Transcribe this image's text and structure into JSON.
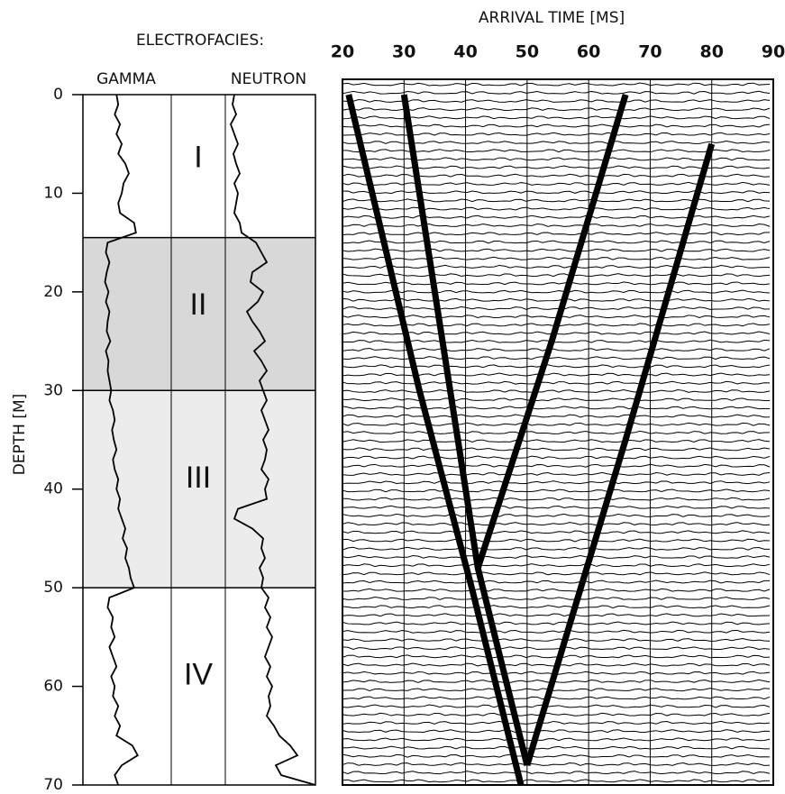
{
  "chart_data": [
    {
      "type": "well-log",
      "title": "ELECTROFACIES:",
      "ylabel": "DEPTH [M]",
      "ylim": [
        0,
        70
      ],
      "yticks": [
        0,
        10,
        20,
        30,
        40,
        50,
        60,
        70
      ],
      "xlim": [
        0,
        100
      ],
      "depth": [
        0,
        1,
        2,
        3,
        4,
        5,
        6,
        7,
        8,
        9,
        10,
        11,
        12,
        13,
        14,
        15,
        16,
        17,
        18,
        19,
        20,
        21,
        22,
        23,
        24,
        25,
        26,
        27,
        28,
        29,
        30,
        31,
        32,
        33,
        34,
        35,
        36,
        37,
        38,
        39,
        40,
        41,
        42,
        43,
        44,
        45,
        46,
        47,
        48,
        49,
        50,
        51,
        52,
        53,
        54,
        55,
        56,
        57,
        58,
        59,
        60,
        61,
        62,
        63,
        64,
        65,
        66,
        67,
        68,
        69,
        70
      ],
      "series": [
        {
          "name": "GAMMA",
          "color": "#000000",
          "values": [
            38,
            40,
            36,
            42,
            38,
            44,
            40,
            48,
            52,
            46,
            44,
            40,
            42,
            58,
            60,
            28,
            26,
            30,
            27,
            25,
            29,
            26,
            30,
            28,
            27,
            31,
            26,
            29,
            28,
            30,
            32,
            30,
            34,
            36,
            33,
            35,
            38,
            34,
            36,
            40,
            38,
            42,
            40,
            44,
            48,
            45,
            50,
            48,
            52,
            54,
            58,
            30,
            28,
            34,
            32,
            36,
            30,
            34,
            38,
            32,
            36,
            34,
            40,
            36,
            42,
            38,
            56,
            62,
            44,
            36,
            40
          ]
        },
        {
          "name": "NEUTRON",
          "color": "#000000",
          "values": [
            10,
            8,
            12,
            6,
            10,
            14,
            9,
            12,
            16,
            10,
            14,
            12,
            10,
            16,
            18,
            34,
            40,
            46,
            30,
            28,
            42,
            36,
            24,
            30,
            38,
            44,
            32,
            40,
            46,
            38,
            42,
            46,
            40,
            44,
            48,
            42,
            46,
            44,
            40,
            48,
            44,
            46,
            14,
            10,
            30,
            42,
            40,
            44,
            38,
            42,
            40,
            48,
            44,
            50,
            46,
            52,
            48,
            44,
            50,
            46,
            52,
            48,
            50,
            46,
            54,
            60,
            72,
            80,
            56,
            62,
            100
          ]
        }
      ],
      "facies": [
        {
          "label": "I",
          "top": 0,
          "base": 14.5,
          "color": "#ffffff"
        },
        {
          "label": "II",
          "top": 14.5,
          "base": 30,
          "color": "#d8d8d8"
        },
        {
          "label": "III",
          "top": 30,
          "base": 50,
          "color": "#ececec"
        },
        {
          "label": "IV",
          "top": 50,
          "base": 70,
          "color": "#ffffff"
        }
      ]
    },
    {
      "type": "line",
      "xlabel": "ARRIVAL TIME [MS]",
      "xlim": [
        20,
        90
      ],
      "xticks": [
        20,
        30,
        40,
        50,
        60,
        70,
        80,
        90
      ],
      "ylim": [
        0,
        70
      ],
      "grid": true,
      "series": [
        {
          "color": "#000000",
          "y": [
            0,
            30,
            50,
            70
          ],
          "values": [
            21,
            32.5,
            41,
            49
          ]
        },
        {
          "color": "#000000",
          "y": [
            0,
            20,
            40,
            48,
            68
          ],
          "values": [
            30,
            35,
            40,
            42,
            50
          ]
        },
        {
          "color": "#000000",
          "y": [
            48,
            25,
            0
          ],
          "values": [
            42,
            54,
            66
          ]
        },
        {
          "color": "#000000",
          "y": [
            68,
            35,
            5
          ],
          "values": [
            50,
            66,
            80
          ]
        }
      ]
    }
  ]
}
